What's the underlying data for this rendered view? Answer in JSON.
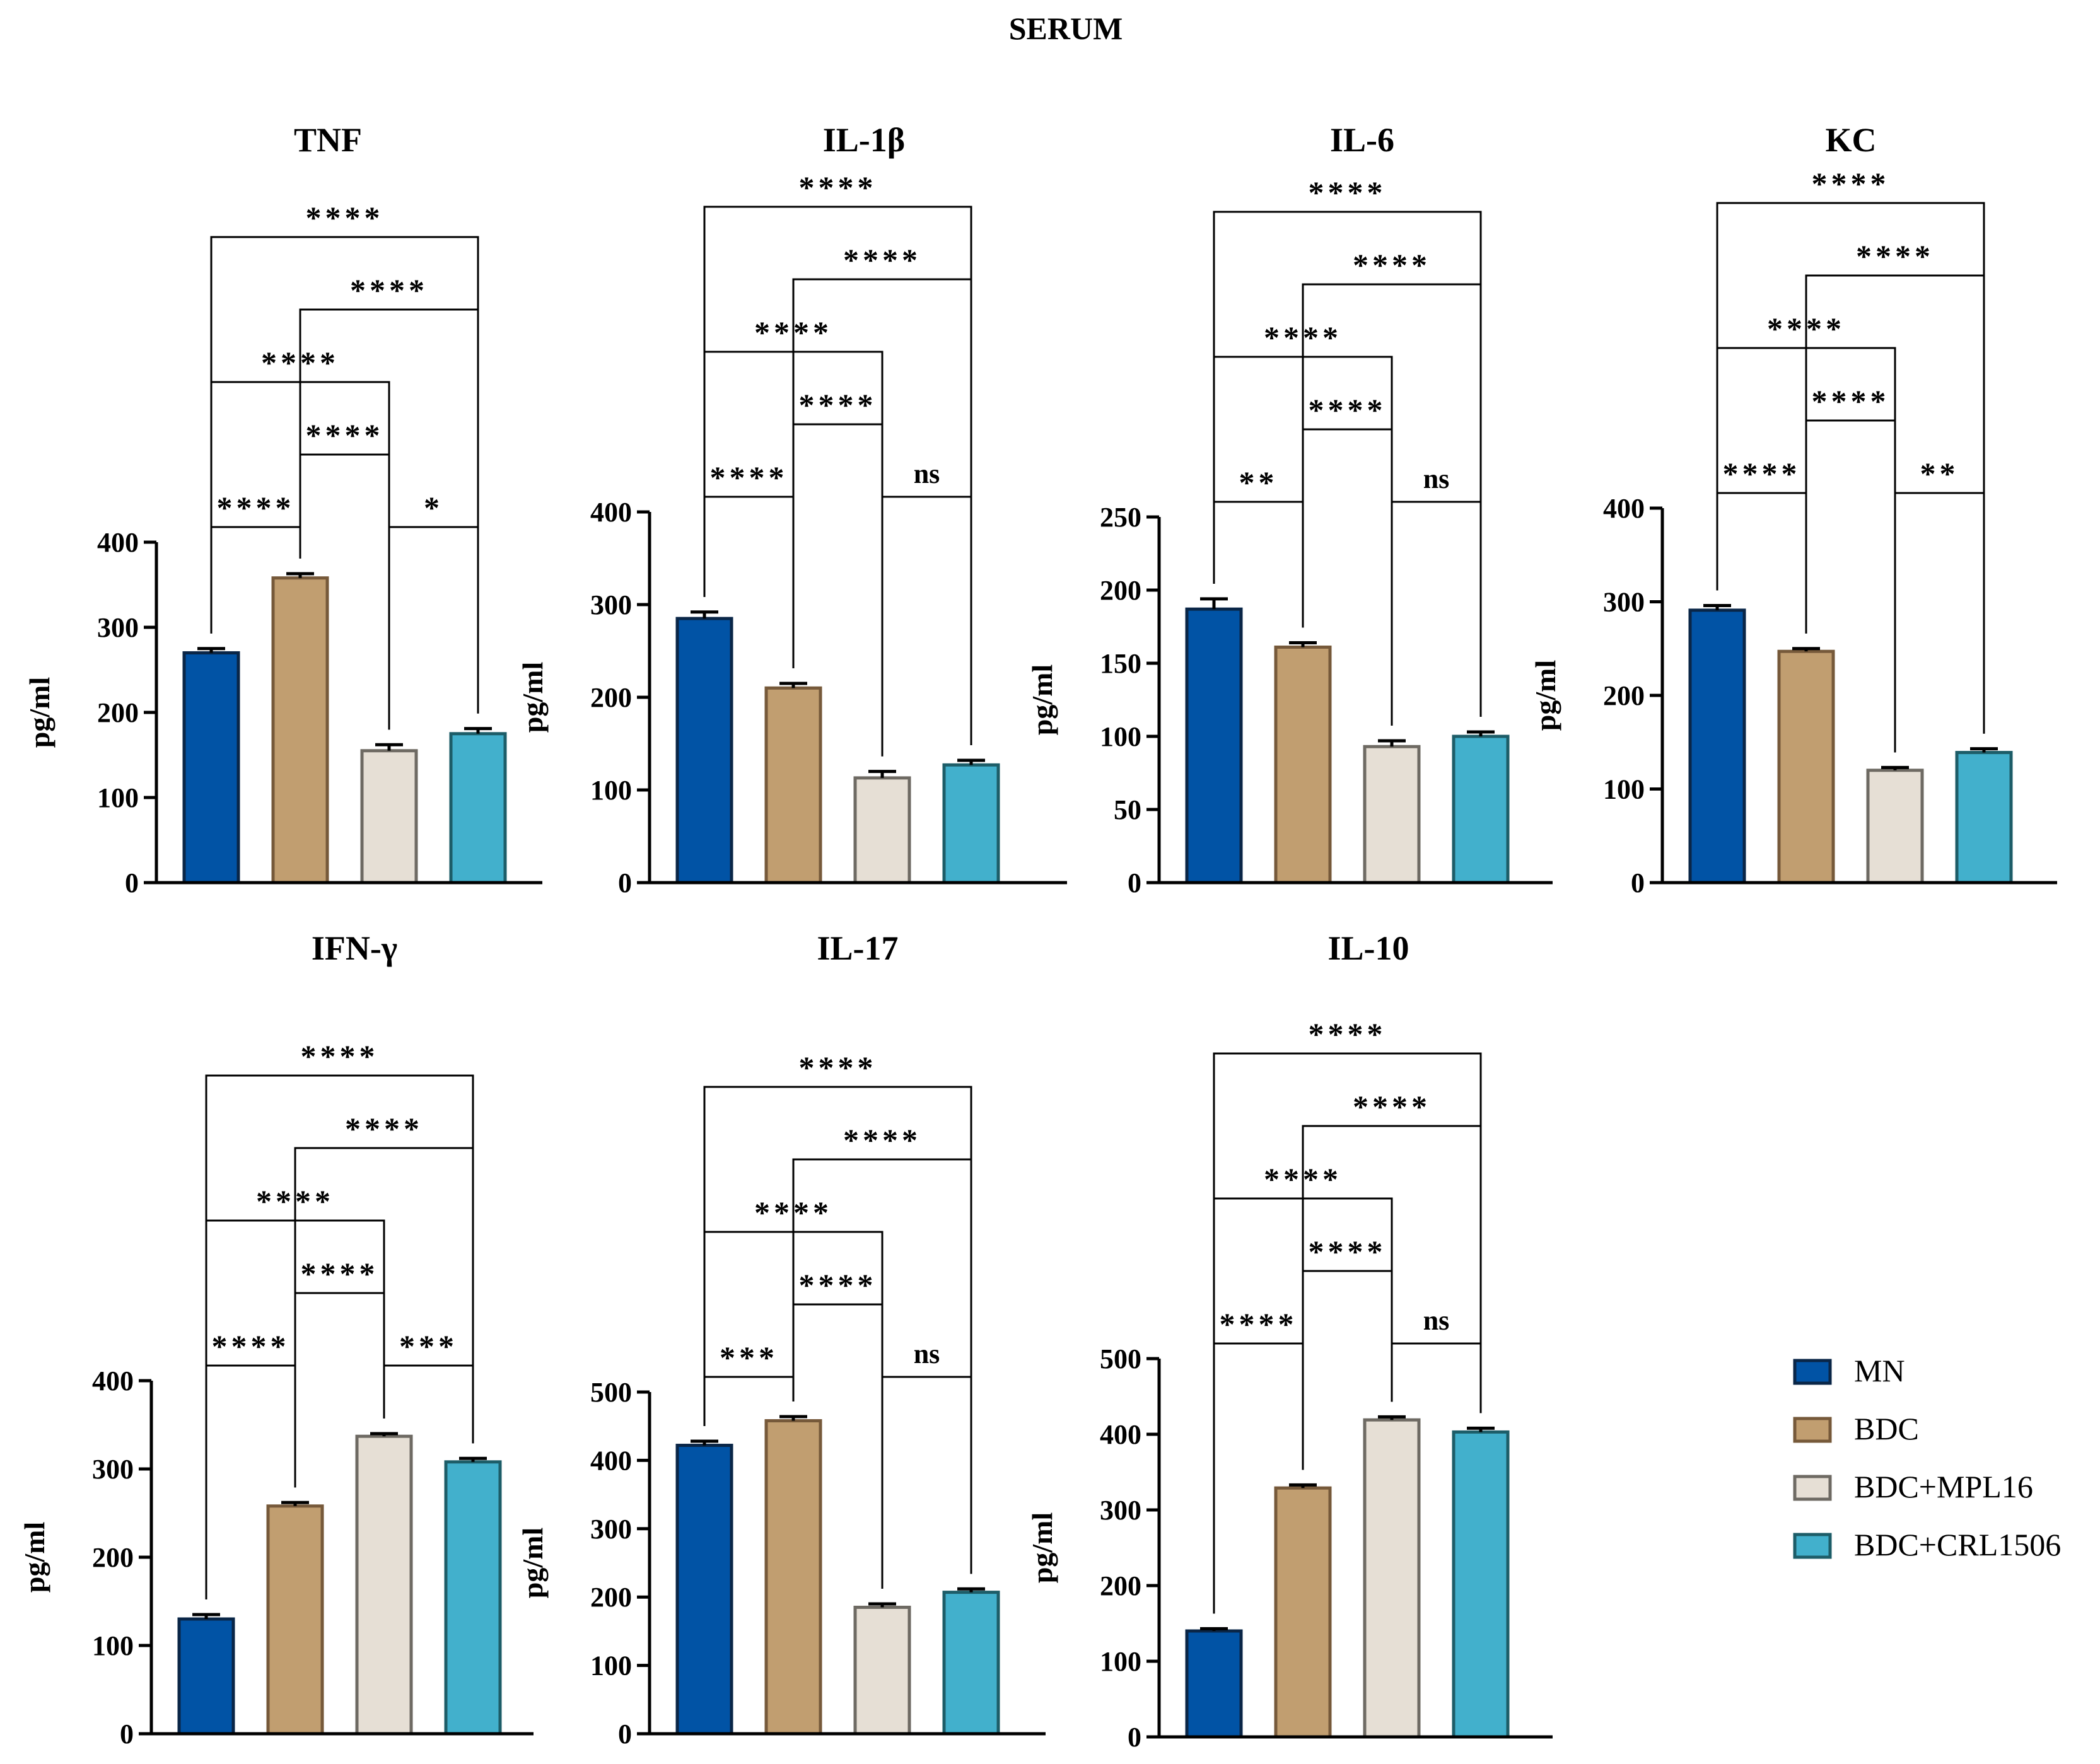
{
  "figure_title": "SERUM",
  "chart_data": [
    {
      "type": "bar",
      "title": "TNF",
      "ylabel": "pg/ml",
      "categories": [
        "MN",
        "BDC",
        "BDC+MPL16",
        "BDC+CRL1506"
      ],
      "values": [
        270,
        358,
        155,
        175
      ],
      "errors": [
        5,
        5,
        7,
        6
      ],
      "ylim": [
        0,
        400
      ],
      "yticks": [
        0,
        100,
        200,
        300,
        400
      ],
      "comparisons": [
        {
          "from": 0,
          "to": 1,
          "label": "****"
        },
        {
          "from": 2,
          "to": 3,
          "label": "*"
        },
        {
          "from": 1,
          "to": 2,
          "label": "****"
        },
        {
          "from": 0,
          "to": 2,
          "label": "****"
        },
        {
          "from": 1,
          "to": 3,
          "label": "****"
        },
        {
          "from": 0,
          "to": 3,
          "label": "****"
        }
      ]
    },
    {
      "type": "bar",
      "title": "IL-1β",
      "ylabel": "pg/ml",
      "categories": [
        "MN",
        "BDC",
        "BDC+MPL16",
        "BDC+CRL1506"
      ],
      "values": [
        285,
        210,
        113,
        127
      ],
      "errors": [
        7,
        5,
        7,
        5
      ],
      "ylim": [
        0,
        400
      ],
      "yticks": [
        0,
        100,
        200,
        300,
        400
      ],
      "comparisons": [
        {
          "from": 0,
          "to": 1,
          "label": "****"
        },
        {
          "from": 2,
          "to": 3,
          "label": "ns"
        },
        {
          "from": 1,
          "to": 2,
          "label": "****"
        },
        {
          "from": 0,
          "to": 2,
          "label": "****"
        },
        {
          "from": 1,
          "to": 3,
          "label": "****"
        },
        {
          "from": 0,
          "to": 3,
          "label": "****"
        }
      ]
    },
    {
      "type": "bar",
      "title": "IL-6",
      "ylabel": "pg/ml",
      "categories": [
        "MN",
        "BDC",
        "BDC+MPL16",
        "BDC+CRL1506"
      ],
      "values": [
        187,
        161,
        93,
        100
      ],
      "errors": [
        7,
        3,
        4,
        3
      ],
      "ylim": [
        0,
        250
      ],
      "yticks": [
        0,
        50,
        100,
        150,
        200,
        250
      ],
      "comparisons": [
        {
          "from": 0,
          "to": 1,
          "label": "**"
        },
        {
          "from": 2,
          "to": 3,
          "label": "ns"
        },
        {
          "from": 1,
          "to": 2,
          "label": "****"
        },
        {
          "from": 0,
          "to": 2,
          "label": "****"
        },
        {
          "from": 1,
          "to": 3,
          "label": "****"
        },
        {
          "from": 0,
          "to": 3,
          "label": "****"
        }
      ]
    },
    {
      "type": "bar",
      "title": "KC",
      "ylabel": "pg/ml",
      "categories": [
        "MN",
        "BDC",
        "BDC+MPL16",
        "BDC+CRL1506"
      ],
      "values": [
        291,
        247,
        120,
        139
      ],
      "errors": [
        5,
        3,
        3,
        4
      ],
      "ylim": [
        0,
        400
      ],
      "yticks": [
        0,
        100,
        200,
        300,
        400
      ],
      "comparisons": [
        {
          "from": 0,
          "to": 1,
          "label": "****"
        },
        {
          "from": 2,
          "to": 3,
          "label": "**"
        },
        {
          "from": 1,
          "to": 2,
          "label": "****"
        },
        {
          "from": 0,
          "to": 2,
          "label": "****"
        },
        {
          "from": 1,
          "to": 3,
          "label": "****"
        },
        {
          "from": 0,
          "to": 3,
          "label": "****"
        }
      ]
    },
    {
      "type": "bar",
      "title": "IFN-γ",
      "ylabel": "pg/ml",
      "categories": [
        "MN",
        "BDC",
        "BDC+MPL16",
        "BDC+CRL1506"
      ],
      "values": [
        130,
        258,
        337,
        308
      ],
      "errors": [
        5,
        4,
        3,
        4
      ],
      "ylim": [
        0,
        400
      ],
      "yticks": [
        0,
        100,
        200,
        300,
        400
      ],
      "comparisons": [
        {
          "from": 0,
          "to": 1,
          "label": "****"
        },
        {
          "from": 2,
          "to": 3,
          "label": "***"
        },
        {
          "from": 1,
          "to": 2,
          "label": "****"
        },
        {
          "from": 0,
          "to": 2,
          "label": "****"
        },
        {
          "from": 1,
          "to": 3,
          "label": "****"
        },
        {
          "from": 0,
          "to": 3,
          "label": "****"
        }
      ]
    },
    {
      "type": "bar",
      "title": "IL-17",
      "ylabel": "pg/ml",
      "categories": [
        "MN",
        "BDC",
        "BDC+MPL16",
        "BDC+CRL1506"
      ],
      "values": [
        422,
        458,
        185,
        207
      ],
      "errors": [
        6,
        6,
        5,
        5
      ],
      "ylim": [
        0,
        500
      ],
      "yticks": [
        0,
        100,
        200,
        300,
        400,
        500
      ],
      "comparisons": [
        {
          "from": 0,
          "to": 1,
          "label": "***"
        },
        {
          "from": 2,
          "to": 3,
          "label": "ns"
        },
        {
          "from": 1,
          "to": 2,
          "label": "****"
        },
        {
          "from": 0,
          "to": 2,
          "label": "****"
        },
        {
          "from": 1,
          "to": 3,
          "label": "****"
        },
        {
          "from": 0,
          "to": 3,
          "label": "****"
        }
      ]
    },
    {
      "type": "bar",
      "title": "IL-10",
      "ylabel": "pg/ml",
      "categories": [
        "MN",
        "BDC",
        "BDC+MPL16",
        "BDC+CRL1506"
      ],
      "values": [
        140,
        329,
        419,
        403
      ],
      "errors": [
        3,
        4,
        4,
        5
      ],
      "ylim": [
        0,
        500
      ],
      "yticks": [
        0,
        100,
        200,
        300,
        400,
        500
      ],
      "comparisons": [
        {
          "from": 0,
          "to": 1,
          "label": "****"
        },
        {
          "from": 2,
          "to": 3,
          "label": "ns"
        },
        {
          "from": 1,
          "to": 2,
          "label": "****"
        },
        {
          "from": 0,
          "to": 2,
          "label": "****"
        },
        {
          "from": 1,
          "to": 3,
          "label": "****"
        },
        {
          "from": 0,
          "to": 3,
          "label": "****"
        }
      ]
    }
  ],
  "legend": [
    {
      "label": "MN",
      "color": "#0153A5",
      "stroke": "#0A2647"
    },
    {
      "label": "BDC",
      "color": "#C19E70",
      "stroke": "#76593A"
    },
    {
      "label": "BDC+MPL16",
      "color": "#E6DFD5",
      "stroke": "#6E6A63"
    },
    {
      "label": "BDC+CRL1506",
      "color": "#42B0CC",
      "stroke": "#1D5D68"
    }
  ]
}
